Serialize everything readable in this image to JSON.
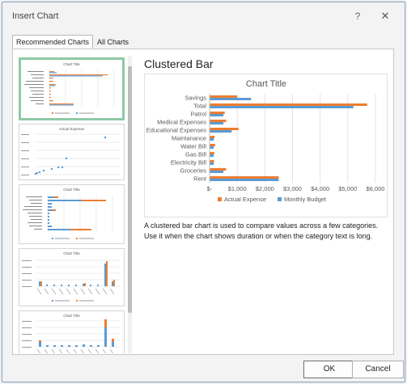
{
  "dialog": {
    "title": "Insert Chart",
    "help_label": "?",
    "close_label": "✕"
  },
  "tabs": [
    {
      "label": "Recommended Charts"
    },
    {
      "label": "All Charts"
    }
  ],
  "thumbnails": [
    {
      "title": "Chart Title"
    },
    {
      "title": "Actual Expense"
    },
    {
      "title": "Chart Title"
    },
    {
      "title": "Chart Title"
    },
    {
      "title": "Chart Title"
    }
  ],
  "preview": {
    "heading": "Clustered Bar",
    "description": "A clustered bar chart is used to compare values across a few categories. Use it when the chart shows duration or when the category text is long."
  },
  "colors": {
    "actual": "#ed7d31",
    "budget": "#5b9bd5",
    "selected_border": "#8fc9a6"
  },
  "chart_data": {
    "type": "bar",
    "orientation": "horizontal",
    "title": "Chart Title",
    "categories": [
      "Savings",
      "Total",
      "Patrol",
      "Medical Expenses",
      "Educational Expenses",
      "Maintanance",
      "Water Bill",
      "Gas Bill",
      "Electricity Bill",
      "Groceries",
      "Rent"
    ],
    "series": [
      {
        "name": "Actual Expense",
        "color": "#ed7d31",
        "values": [
          1000,
          5700,
          550,
          600,
          1050,
          180,
          200,
          170,
          160,
          600,
          2500
        ]
      },
      {
        "name": "Monthly Budget",
        "color": "#5b9bd5",
        "values": [
          1500,
          5200,
          500,
          500,
          800,
          150,
          150,
          150,
          150,
          500,
          2500
        ]
      }
    ],
    "xlim": [
      0,
      6000
    ],
    "xticks": [
      "$-",
      "$1,000",
      "$2,000",
      "$3,000",
      "$4,000",
      "$5,000",
      "$6,000"
    ],
    "legend_position": "bottom",
    "grid": true
  },
  "footer": {
    "ok_label": "OK",
    "cancel_label": "Cancel"
  }
}
